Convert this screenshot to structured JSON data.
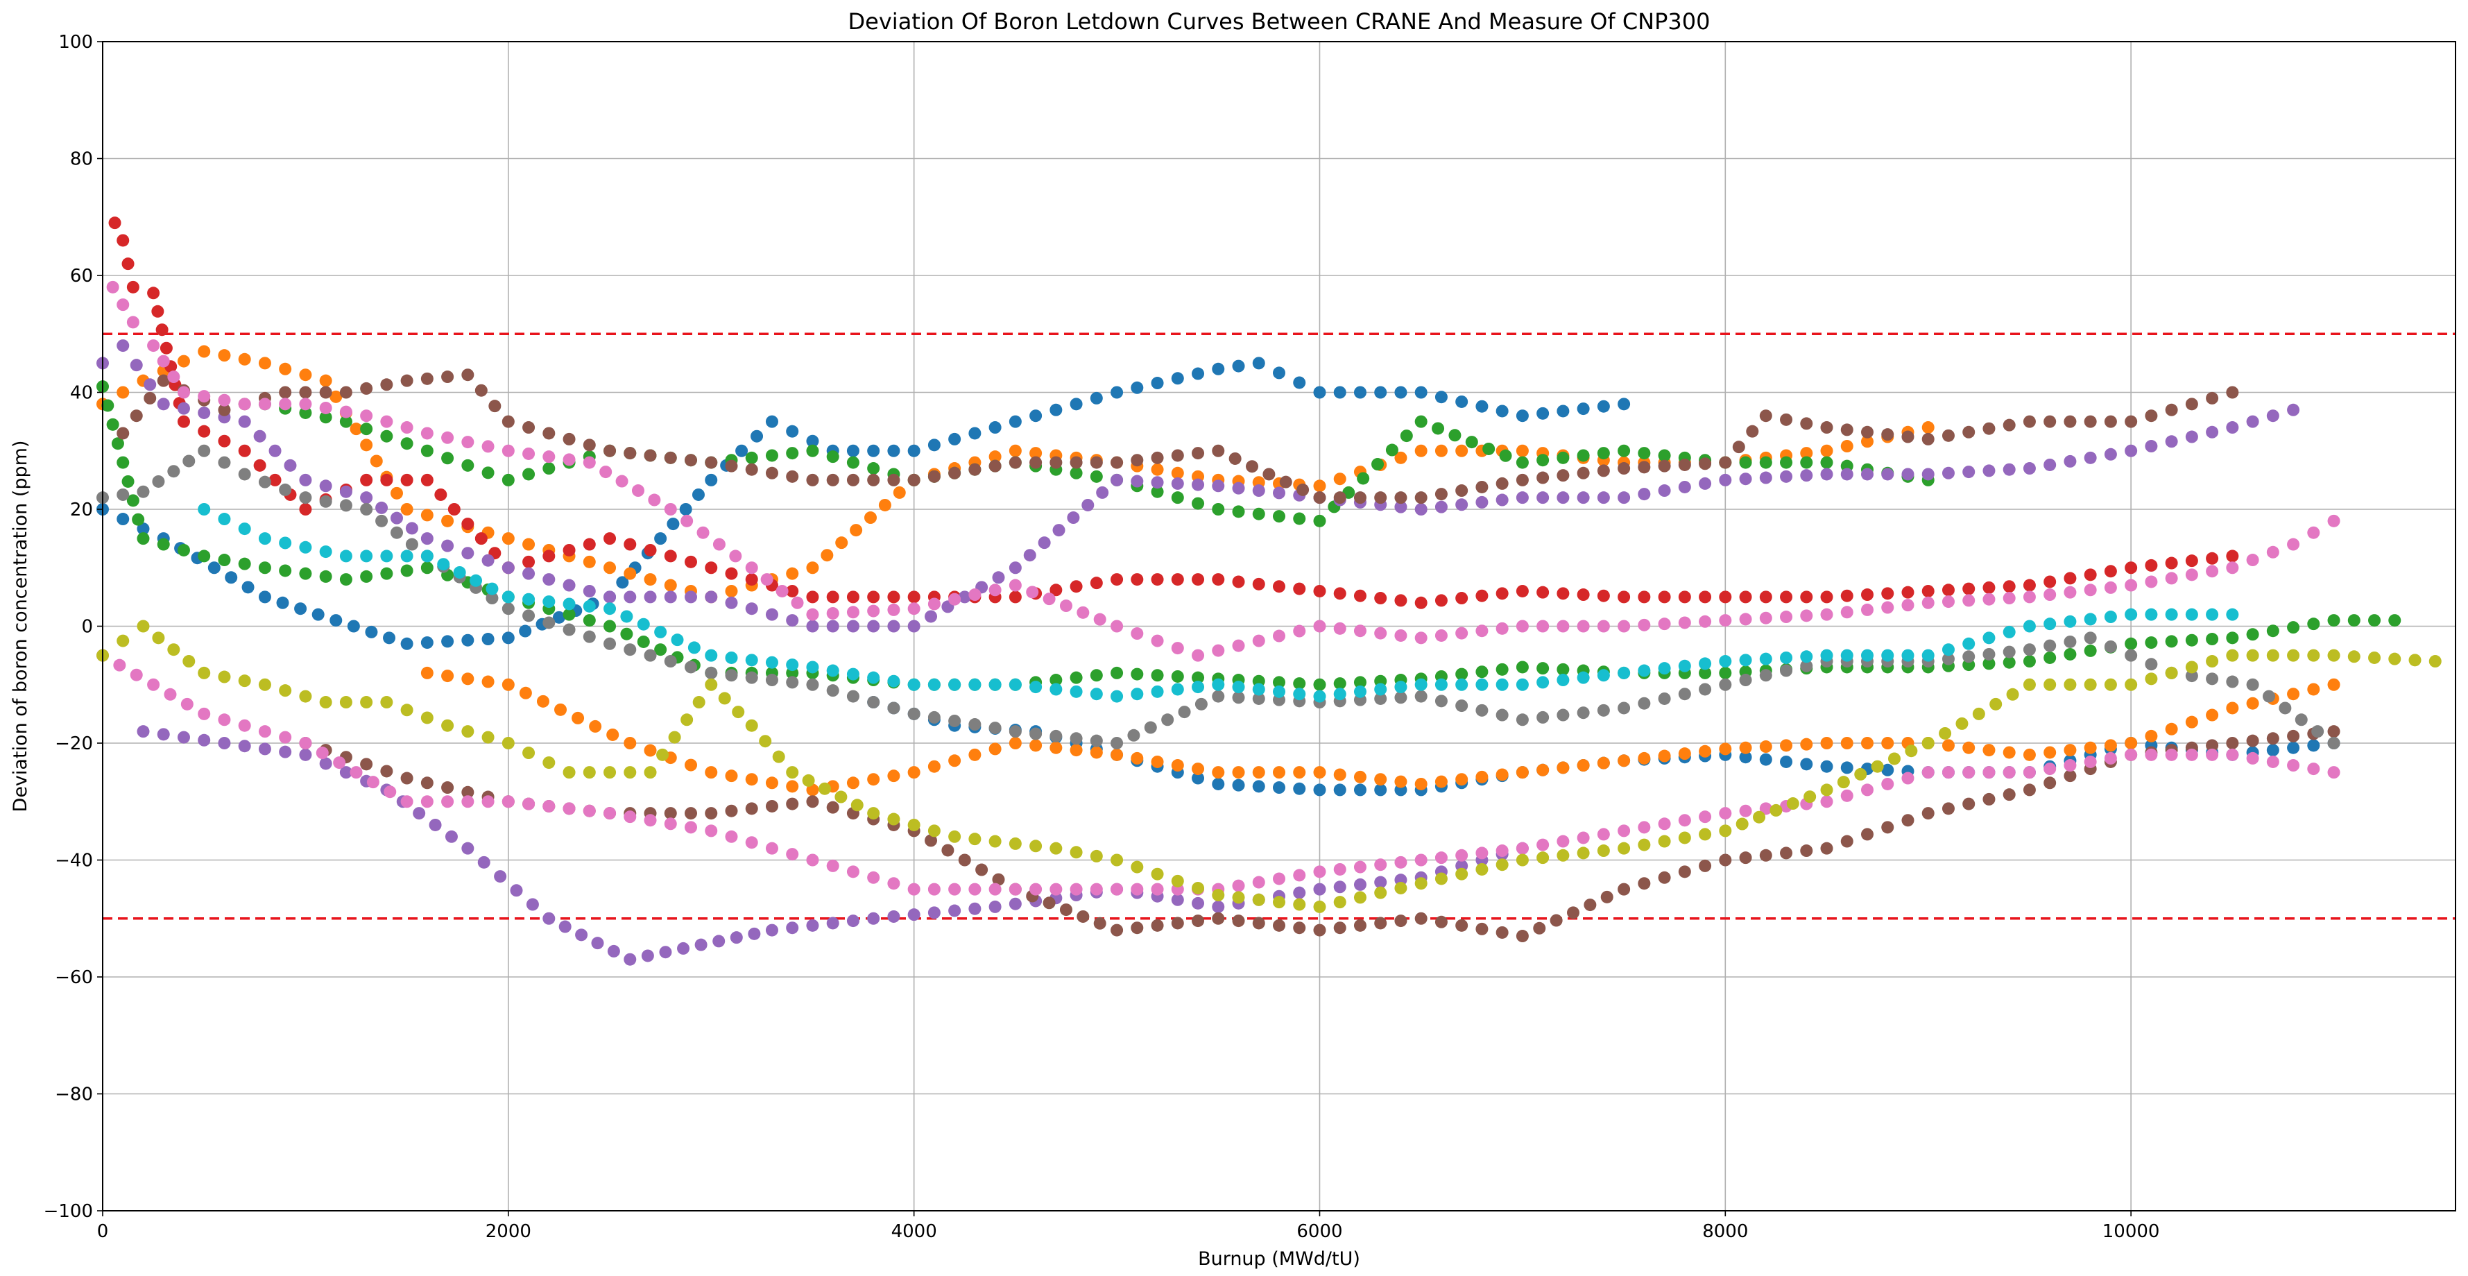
{
  "chart_data": {
    "type": "scatter",
    "title": "Deviation Of Boron Letdown Curves Between CRANE And Measure Of CNP300",
    "xlabel": "Burnup (MWd/tU)",
    "ylabel": "Deviation of boron concentration (ppm)",
    "xlim": [
      0,
      11600
    ],
    "ylim": [
      -100,
      100
    ],
    "x_ticks": [
      0,
      2000,
      4000,
      6000,
      8000,
      10000
    ],
    "y_ticks": [
      -100,
      -80,
      -60,
      -40,
      -20,
      0,
      20,
      40,
      60,
      80,
      100
    ],
    "x_tick_labels": [
      "0",
      "2000",
      "4000",
      "6000",
      "8000",
      "10000"
    ],
    "y_tick_labels": [
      "−100",
      "−80",
      "−60",
      "−40",
      "−20",
      "0",
      "20",
      "40",
      "60",
      "80",
      "100"
    ],
    "grid": true,
    "legend": "none",
    "reference_lines": [
      {
        "y": 50,
        "color": "#e8141c",
        "style": "dashed"
      },
      {
        "y": -50,
        "color": "#e8141c",
        "style": "dashed"
      }
    ],
    "series": [
      {
        "color": "#1f77b4",
        "x": [
          0,
          300,
          800,
          1500,
          2000,
          2500,
          3000,
          3300,
          3600,
          4000,
          4500,
          5000,
          5500,
          5700,
          6000,
          6500,
          7000,
          7500
        ],
        "y": [
          20,
          15,
          5,
          -3,
          -2,
          5,
          25,
          35,
          30,
          30,
          35,
          40,
          44,
          45,
          40,
          40,
          36,
          38
        ]
      },
      {
        "color": "#1f77b4",
        "x": [
          3800,
          4200,
          4600,
          5000,
          5500,
          6000,
          6500,
          7000,
          7500,
          8000,
          8500,
          9000,
          9500,
          10000,
          10500,
          11000
        ],
        "y": [
          -13,
          -17,
          -18,
          -22,
          -27,
          -28,
          -28,
          -25,
          -23,
          -22,
          -24,
          -25,
          -25,
          -20,
          -22,
          -20
        ]
      },
      {
        "color": "#ff7f0e",
        "x": [
          0,
          200,
          500,
          800,
          1100,
          1500,
          2000,
          2500,
          3000,
          3500,
          4000,
          4500,
          5000,
          5500,
          6000,
          6500,
          7000,
          7500,
          8000,
          8500,
          9000
        ],
        "y": [
          38,
          42,
          47,
          45,
          42,
          20,
          15,
          10,
          5,
          10,
          25,
          30,
          28,
          25,
          24,
          30,
          30,
          28,
          28,
          30,
          34
        ]
      },
      {
        "color": "#ff7f0e",
        "x": [
          1600,
          2000,
          2600,
          3000,
          3500,
          4000,
          4500,
          5000,
          5500,
          6000,
          6500,
          7000,
          7500,
          8000,
          8500,
          9000,
          9500,
          10000,
          10500,
          11000
        ],
        "y": [
          -8,
          -10,
          -20,
          -25,
          -28,
          -25,
          -20,
          -22,
          -25,
          -25,
          -27,
          -25,
          -23,
          -21,
          -20,
          -20,
          -22,
          -20,
          -14,
          -10
        ]
      },
      {
        "color": "#2ca02c",
        "x": [
          0,
          200,
          500,
          800,
          1200,
          1600,
          2000,
          2500,
          3000,
          3500,
          4000,
          4500,
          5000,
          5500,
          6000,
          6500,
          7000,
          7500,
          8000,
          8500,
          9000,
          9500,
          10000,
          10500,
          11000,
          11300
        ],
        "y": [
          41,
          15,
          12,
          10,
          8,
          10,
          5,
          0,
          -8,
          -8,
          -10,
          -10,
          -8,
          -9,
          -10,
          -9,
          -7,
          -8,
          -8,
          -7,
          -7,
          -6,
          -3,
          -2,
          1,
          1
        ]
      },
      {
        "color": "#2ca02c",
        "x": [
          800,
          1200,
          1600,
          2000,
          2500,
          3000,
          3500,
          4000,
          4500,
          5000,
          5500,
          6000,
          6500,
          7000,
          7500,
          8000,
          8500,
          9000
        ],
        "y": [
          38,
          35,
          30,
          25,
          30,
          28,
          30,
          25,
          28,
          25,
          20,
          18,
          35,
          28,
          30,
          28,
          28,
          25
        ]
      },
      {
        "color": "#d62728",
        "x": [
          60,
          100,
          150,
          250,
          400,
          700,
          1000,
          1300,
          1600,
          2000,
          2500,
          3000,
          3500,
          4000,
          4500,
          5000,
          5500,
          6000,
          6500,
          7000,
          7500,
          8000,
          8500,
          9000,
          9500,
          10000,
          10500
        ],
        "y": [
          69,
          66,
          58,
          57,
          35,
          30,
          20,
          25,
          25,
          10,
          15,
          10,
          5,
          5,
          5,
          8,
          8,
          6,
          4,
          6,
          5,
          5,
          5,
          6,
          7,
          10,
          12
        ]
      },
      {
        "color": "#9467bd",
        "x": [
          0,
          100,
          300,
          700,
          1000,
          1300,
          1600,
          2000,
          2500,
          3000,
          3500,
          4000,
          4500,
          5000,
          5500,
          6000,
          6500,
          7000,
          7500,
          8000,
          8500,
          9000,
          9500,
          10000,
          10500,
          10800
        ],
        "y": [
          45,
          48,
          38,
          35,
          25,
          22,
          15,
          10,
          5,
          5,
          0,
          0,
          10,
          25,
          24,
          22,
          20,
          22,
          22,
          25,
          26,
          26,
          27,
          30,
          34,
          37
        ]
      },
      {
        "color": "#9467bd",
        "x": [
          200,
          600,
          1000,
          1400,
          1800,
          2200,
          2600,
          3300,
          3800,
          4400,
          5000,
          5500,
          6000,
          6500,
          7000
        ],
        "y": [
          -18,
          -20,
          -22,
          -28,
          -38,
          -50,
          -57,
          -52,
          -50,
          -48,
          -45,
          -48,
          -45,
          -43,
          -38
        ]
      },
      {
        "color": "#8c564b",
        "x": [
          100,
          300,
          600,
          900,
          1200,
          1500,
          1800,
          2000,
          2500,
          3000,
          3500,
          4000,
          4500,
          5000,
          5500,
          6000,
          6500,
          7000,
          7500,
          8000,
          8200,
          8500,
          9000,
          9500,
          10000,
          10500
        ],
        "y": [
          33,
          42,
          37,
          40,
          40,
          42,
          43,
          35,
          30,
          28,
          25,
          25,
          28,
          28,
          30,
          22,
          22,
          25,
          27,
          28,
          36,
          34,
          32,
          35,
          35,
          40
        ]
      },
      {
        "color": "#8c564b",
        "x": [
          1000,
          1500,
          2000,
          2500,
          3000,
          3500,
          4000,
          4500,
          5000,
          5500,
          6000,
          6500,
          7000,
          7500,
          8000,
          8500,
          9000,
          9500,
          10000,
          10500,
          11000
        ],
        "y": [
          -20,
          -26,
          -30,
          -32,
          -32,
          -30,
          -35,
          -45,
          -52,
          -50,
          -52,
          -50,
          -53,
          -45,
          -40,
          -38,
          -32,
          -28,
          -22,
          -20,
          -18
        ]
      },
      {
        "color": "#e377c2",
        "x": [
          50,
          150,
          250,
          400,
          700,
          1000,
          1300,
          1600,
          2000,
          2400,
          2800,
          3200,
          3500,
          4000,
          4500,
          5000,
          5400,
          6000,
          6500,
          7000,
          7500,
          8000,
          8500,
          9000,
          9500,
          10000,
          10500,
          10800,
          11000
        ],
        "y": [
          58,
          52,
          48,
          40,
          38,
          38,
          36,
          33,
          30,
          28,
          20,
          10,
          2,
          3,
          7,
          0,
          -5,
          0,
          -2,
          0,
          0,
          1,
          2,
          4,
          5,
          7,
          10,
          14,
          18
        ]
      },
      {
        "color": "#e377c2",
        "x": [
          0,
          500,
          1000,
          1500,
          2000,
          2500,
          3000,
          3500,
          4000,
          4500,
          5000,
          5500,
          6000,
          6500,
          7000,
          7500,
          8000,
          8500,
          9000,
          9500,
          10000,
          10500,
          11000
        ],
        "y": [
          -5,
          -15,
          -20,
          -30,
          -30,
          -32,
          -35,
          -40,
          -45,
          -45,
          -45,
          -45,
          -42,
          -40,
          -38,
          -35,
          -32,
          -30,
          -25,
          -25,
          -22,
          -22,
          -25
        ]
      },
      {
        "color": "#7f7f7f",
        "x": [
          0,
          200,
          500,
          700,
          1000,
          1300,
          1600,
          2000,
          2500,
          3000,
          3500,
          4000,
          4500,
          5000,
          5500,
          6000,
          6500,
          7000,
          7500,
          8000,
          8500,
          9000,
          9500,
          9800,
          10200,
          10600,
          11000
        ],
        "y": [
          22,
          23,
          30,
          26,
          22,
          20,
          12,
          3,
          -3,
          -8,
          -10,
          -15,
          -18,
          -20,
          -12,
          -13,
          -12,
          -16,
          -14,
          -10,
          -6,
          -6,
          -4,
          -2,
          -8,
          -10,
          -20
        ]
      },
      {
        "color": "#bcbd22",
        "x": [
          0,
          200,
          500,
          800,
          1100,
          1400,
          1700,
          2000,
          2300,
          2700,
          3000,
          3200,
          3400,
          3800,
          4200,
          4700,
          5000,
          5500,
          6000,
          6500,
          7000,
          7500,
          8000,
          8500,
          9000,
          9500,
          10000,
          10500,
          11000,
          11500
        ],
        "y": [
          -5,
          0,
          -8,
          -10,
          -13,
          -13,
          -17,
          -20,
          -25,
          -25,
          -10,
          -17,
          -25,
          -32,
          -36,
          -38,
          -40,
          -46,
          -48,
          -44,
          -40,
          -38,
          -35,
          -28,
          -20,
          -10,
          -10,
          -5,
          -5,
          -6
        ]
      },
      {
        "color": "#17becf",
        "x": [
          500,
          800,
          1200,
          1600,
          2000,
          2500,
          3000,
          3500,
          4000,
          4500,
          5000,
          5500,
          6000,
          6500,
          7000,
          7500,
          8000,
          8500,
          9000,
          9500,
          10000,
          10500
        ],
        "y": [
          20,
          15,
          12,
          12,
          5,
          3,
          -5,
          -7,
          -10,
          -10,
          -12,
          -10,
          -12,
          -10,
          -10,
          -8,
          -6,
          -5,
          -5,
          0,
          2,
          2
        ]
      }
    ]
  }
}
